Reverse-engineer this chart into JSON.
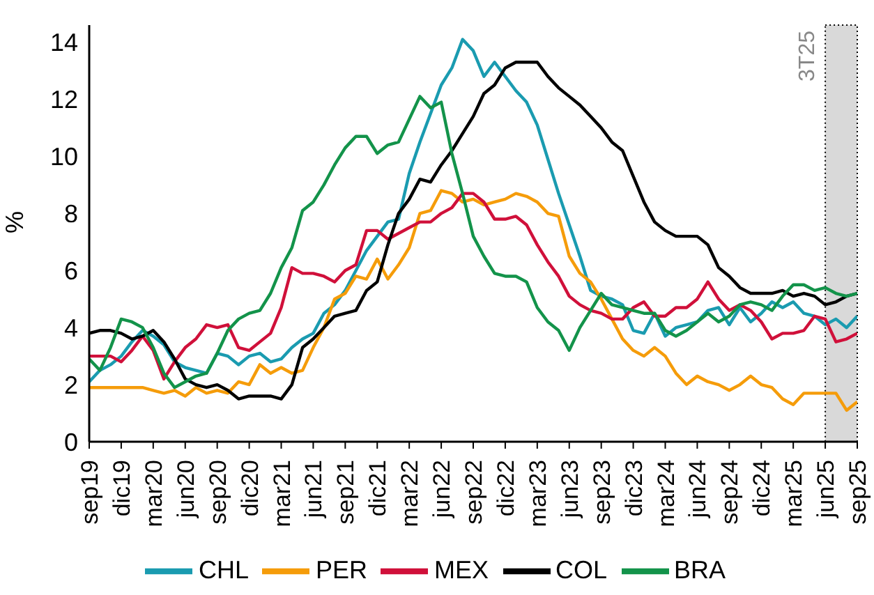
{
  "chart_data": {
    "type": "line",
    "ylabel": "%",
    "categories": [
      "sep19",
      null,
      null,
      "dic19",
      null,
      null,
      "mar20",
      null,
      null,
      "jun20",
      null,
      null,
      "sep20",
      null,
      null,
      "dic20",
      null,
      null,
      "mar21",
      null,
      null,
      "jun21",
      null,
      null,
      "sep21",
      null,
      null,
      "dic21",
      null,
      null,
      "mar22",
      null,
      null,
      "jun22",
      null,
      null,
      "sep22",
      null,
      null,
      "dic22",
      null,
      null,
      "mar23",
      null,
      null,
      "jun23",
      null,
      null,
      "sep23",
      null,
      null,
      "dic23",
      null,
      null,
      "mar24",
      null,
      null,
      "jun24",
      null,
      null,
      "sep24",
      null,
      null,
      "dic24",
      null,
      null,
      "mar25",
      null,
      null,
      "jun25",
      null,
      null,
      "sep25"
    ],
    "series": [
      {
        "name": "CHL",
        "color": "#1a9bb0",
        "values": [
          2.1,
          2.5,
          2.7,
          3.0,
          3.5,
          3.9,
          3.7,
          3.4,
          2.8,
          2.6,
          2.5,
          2.4,
          3.1,
          3.0,
          2.7,
          3.0,
          3.1,
          2.8,
          2.9,
          3.3,
          3.6,
          3.8,
          4.5,
          4.8,
          5.3,
          6.0,
          6.7,
          7.2,
          7.7,
          7.8,
          9.4,
          10.5,
          11.5,
          12.5,
          13.1,
          14.1,
          13.7,
          12.8,
          13.3,
          12.8,
          12.3,
          11.9,
          11.1,
          9.9,
          8.7,
          7.6,
          6.5,
          5.3,
          5.1,
          5.0,
          4.8,
          3.9,
          3.8,
          4.5,
          3.7,
          4.0,
          4.1,
          4.2,
          4.6,
          4.7,
          4.1,
          4.7,
          4.2,
          4.5,
          4.9,
          4.7,
          4.9,
          4.5,
          4.4,
          4.1,
          4.3,
          4.0,
          4.4
        ]
      },
      {
        "name": "PER",
        "color": "#f59c0a",
        "values": [
          1.9,
          1.9,
          1.9,
          1.9,
          1.9,
          1.9,
          1.8,
          1.7,
          1.8,
          1.6,
          1.9,
          1.7,
          1.8,
          1.7,
          2.1,
          2.0,
          2.7,
          2.4,
          2.6,
          2.4,
          2.5,
          3.3,
          4.0,
          5.0,
          5.2,
          5.8,
          5.7,
          6.4,
          5.7,
          6.2,
          6.8,
          8.0,
          8.1,
          8.8,
          8.7,
          8.4,
          8.5,
          8.3,
          8.4,
          8.5,
          8.7,
          8.6,
          8.4,
          8.0,
          7.9,
          6.5,
          5.9,
          5.6,
          5.0,
          4.3,
          3.6,
          3.2,
          3.0,
          3.3,
          3.0,
          2.4,
          2.0,
          2.3,
          2.1,
          2.0,
          1.8,
          2.0,
          2.3,
          2.0,
          1.9,
          1.5,
          1.3,
          1.7,
          1.7,
          1.7,
          1.7,
          1.1,
          1.4
        ]
      },
      {
        "name": "MEX",
        "color": "#d0103a",
        "values": [
          3.0,
          3.0,
          3.0,
          2.8,
          3.2,
          3.7,
          3.2,
          2.2,
          2.8,
          3.3,
          3.6,
          4.1,
          4.0,
          4.1,
          3.3,
          3.2,
          3.5,
          3.8,
          4.7,
          6.1,
          5.9,
          5.9,
          5.8,
          5.6,
          6.0,
          6.2,
          7.4,
          7.4,
          7.1,
          7.3,
          7.5,
          7.7,
          7.7,
          8.0,
          8.2,
          8.7,
          8.7,
          8.4,
          7.8,
          7.8,
          7.9,
          7.6,
          6.9,
          6.3,
          5.8,
          5.1,
          4.8,
          4.6,
          4.5,
          4.3,
          4.3,
          4.7,
          4.9,
          4.4,
          4.4,
          4.7,
          4.7,
          5.0,
          5.6,
          5.0,
          4.6,
          4.8,
          4.6,
          4.2,
          3.6,
          3.8,
          3.8,
          3.9,
          4.4,
          4.3,
          3.5,
          3.6,
          3.8
        ]
      },
      {
        "name": "COL",
        "color": "#000000",
        "values": [
          3.8,
          3.9,
          3.9,
          3.8,
          3.6,
          3.7,
          3.9,
          3.5,
          2.9,
          2.2,
          2.0,
          1.9,
          2.0,
          1.8,
          1.5,
          1.6,
          1.6,
          1.6,
          1.5,
          2.0,
          3.3,
          3.6,
          4.0,
          4.4,
          4.5,
          4.6,
          5.3,
          5.6,
          6.9,
          8.0,
          8.5,
          9.2,
          9.1,
          9.7,
          10.2,
          10.8,
          11.4,
          12.2,
          12.5,
          13.1,
          13.3,
          13.3,
          13.3,
          12.8,
          12.4,
          12.1,
          11.8,
          11.4,
          11.0,
          10.5,
          10.2,
          9.3,
          8.4,
          7.7,
          7.4,
          7.2,
          7.2,
          7.2,
          6.9,
          6.1,
          5.8,
          5.4,
          5.2,
          5.2,
          5.2,
          5.3,
          5.1,
          5.2,
          5.1,
          4.8,
          4.9,
          5.1,
          5.2
        ]
      },
      {
        "name": "BRA",
        "color": "#13934a",
        "values": [
          2.9,
          2.5,
          3.3,
          4.3,
          4.2,
          4.0,
          3.3,
          2.4,
          1.9,
          2.1,
          2.3,
          2.4,
          3.1,
          3.9,
          4.3,
          4.5,
          4.6,
          5.2,
          6.1,
          6.8,
          8.1,
          8.4,
          9.0,
          9.7,
          10.3,
          10.7,
          10.7,
          10.1,
          10.4,
          10.5,
          11.3,
          12.1,
          11.7,
          11.9,
          10.1,
          8.7,
          7.2,
          6.5,
          5.9,
          5.8,
          5.8,
          5.6,
          4.7,
          4.2,
          3.9,
          3.2,
          4.0,
          4.6,
          5.2,
          4.8,
          4.7,
          4.6,
          4.5,
          4.5,
          3.9,
          3.7,
          3.9,
          4.2,
          4.5,
          4.2,
          4.4,
          4.8,
          4.9,
          4.8,
          4.6,
          5.1,
          5.5,
          5.5,
          5.3,
          5.4,
          5.2,
          5.1,
          5.2
        ]
      }
    ],
    "ylim": [
      0,
      14.6
    ],
    "yticks": [
      0,
      2,
      4,
      6,
      8,
      10,
      12,
      14
    ],
    "bands": [
      {
        "axis": "x",
        "from": "jun25",
        "to": "sep25",
        "label": "3T25",
        "color": "#d9d9d9"
      }
    ],
    "legend": "bottom",
    "marker": "none",
    "line_style": "solid"
  }
}
